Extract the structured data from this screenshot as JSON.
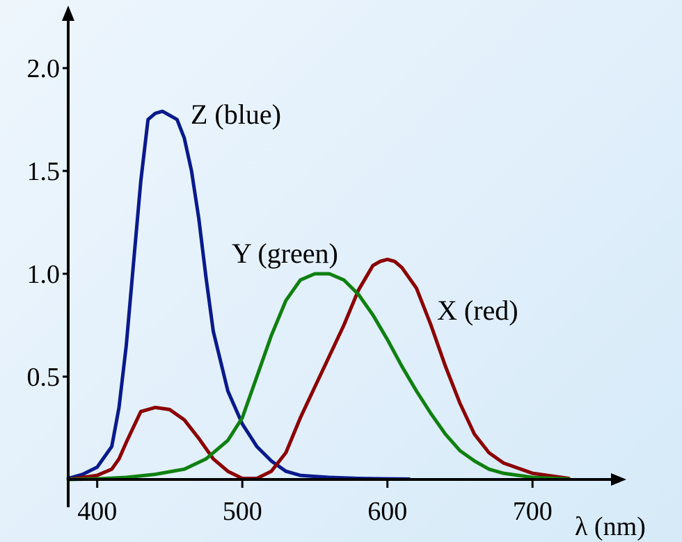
{
  "chart_data": {
    "type": "line",
    "xlabel": "λ (nm)",
    "ylabel": "",
    "xlim": [
      380,
      730
    ],
    "ylim": [
      0,
      2.0
    ],
    "x_ticks": [
      "400",
      "500",
      "600",
      "700"
    ],
    "y_ticks": [
      "0.5",
      "1.0",
      "1.5",
      "2.0"
    ],
    "grid": false,
    "series": [
      {
        "name": "Z (blue)",
        "color": "#0a1a8c",
        "x": [
          380,
          390,
          400,
          410,
          415,
          420,
          425,
          430,
          435,
          440,
          445,
          450,
          455,
          460,
          465,
          470,
          475,
          480,
          490,
          500,
          510,
          520,
          530,
          540,
          550,
          560,
          580,
          600,
          615
        ],
        "y": [
          0.005,
          0.025,
          0.06,
          0.16,
          0.35,
          0.65,
          1.05,
          1.45,
          1.75,
          1.78,
          1.79,
          1.77,
          1.75,
          1.66,
          1.5,
          1.27,
          0.98,
          0.72,
          0.43,
          0.27,
          0.16,
          0.09,
          0.04,
          0.02,
          0.015,
          0.01,
          0.005,
          0.003,
          0.002
        ]
      },
      {
        "name": "X (red)",
        "color": "#8b0000",
        "x": [
          380,
          400,
          410,
          415,
          420,
          430,
          440,
          450,
          460,
          470,
          480,
          490,
          500,
          510,
          520,
          530,
          540,
          550,
          560,
          570,
          580,
          590,
          595,
          600,
          605,
          610,
          620,
          630,
          640,
          650,
          660,
          670,
          680,
          700,
          725
        ],
        "y": [
          0.0,
          0.02,
          0.05,
          0.1,
          0.18,
          0.33,
          0.35,
          0.34,
          0.29,
          0.2,
          0.1,
          0.04,
          0.005,
          0.005,
          0.04,
          0.13,
          0.3,
          0.45,
          0.6,
          0.75,
          0.92,
          1.04,
          1.06,
          1.07,
          1.06,
          1.03,
          0.93,
          0.75,
          0.55,
          0.37,
          0.22,
          0.13,
          0.08,
          0.03,
          0.005
        ]
      },
      {
        "name": "Y (green)",
        "color": "#108010",
        "x": [
          380,
          400,
          420,
          440,
          460,
          475,
          490,
          500,
          510,
          520,
          530,
          540,
          550,
          560,
          570,
          580,
          590,
          600,
          610,
          620,
          630,
          640,
          650,
          660,
          670,
          680,
          700,
          725
        ],
        "y": [
          0.0,
          0.003,
          0.01,
          0.025,
          0.05,
          0.1,
          0.19,
          0.3,
          0.5,
          0.7,
          0.87,
          0.97,
          1.0,
          1.0,
          0.97,
          0.9,
          0.8,
          0.68,
          0.55,
          0.43,
          0.32,
          0.22,
          0.14,
          0.09,
          0.05,
          0.03,
          0.01,
          0.002
        ]
      }
    ]
  }
}
